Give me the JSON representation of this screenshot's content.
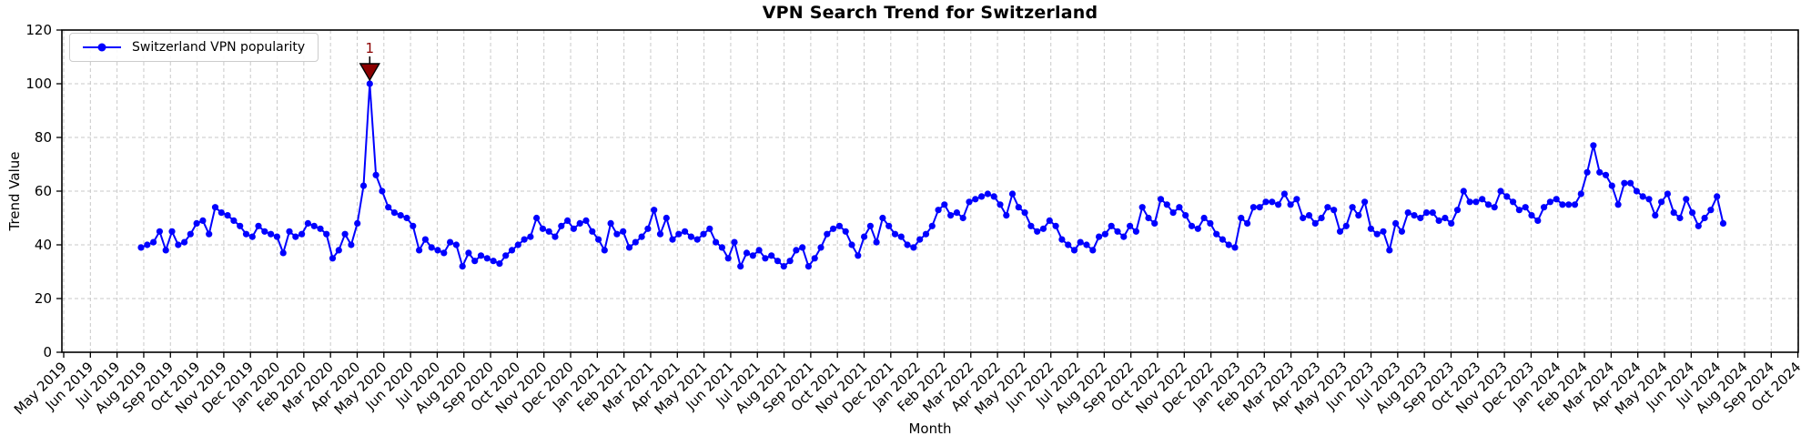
{
  "chart_data": {
    "type": "line",
    "title": "VPN Search Trend for Switzerland",
    "xlabel": "Month",
    "ylabel": "Trend Value",
    "ylim": [
      0,
      120
    ],
    "y_ticks": [
      0,
      20,
      40,
      60,
      80,
      100,
      120
    ],
    "grid": true,
    "legend_position": "upper left",
    "x_tick_labels": [
      "May 2019",
      "Jun 2019",
      "Jul 2019",
      "Aug 2019",
      "Sep 2019",
      "Oct 2019",
      "Nov 2019",
      "Dec 2019",
      "Jan 2020",
      "Feb 2020",
      "Mar 2020",
      "Apr 2020",
      "May 2020",
      "Jun 2020",
      "Jul 2020",
      "Aug 2020",
      "Sep 2020",
      "Oct 2020",
      "Nov 2020",
      "Dec 2020",
      "Jan 2021",
      "Feb 2021",
      "Mar 2021",
      "Apr 2021",
      "May 2021",
      "Jun 2021",
      "Jul 2021",
      "Aug 2021",
      "Sep 2021",
      "Oct 2021",
      "Nov 2021",
      "Dec 2021",
      "Jan 2022",
      "Feb 2022",
      "Mar 2022",
      "Apr 2022",
      "May 2022",
      "Jun 2022",
      "Jul 2022",
      "Aug 2022",
      "Sep 2022",
      "Oct 2022",
      "Nov 2022",
      "Dec 2022",
      "Jan 2023",
      "Feb 2023",
      "Mar 2023",
      "Apr 2023",
      "May 2023",
      "Jun 2023",
      "Jul 2023",
      "Aug 2023",
      "Sep 2023",
      "Oct 2023",
      "Nov 2023",
      "Dec 2023",
      "Jan 2024",
      "Feb 2024",
      "Mar 2024",
      "Apr 2024",
      "May 2024",
      "Jun 2024",
      "Jul 2024",
      "Aug 2024",
      "Sep 2024",
      "Oct 2024"
    ],
    "series": [
      {
        "name": "Switzerland VPN popularity",
        "color": "#0000ff",
        "marker": "circle",
        "x_start_month_index": 2.9,
        "x_end_month_index": 62.2,
        "values": [
          39,
          40,
          41,
          45,
          38,
          45,
          40,
          41,
          44,
          48,
          49,
          44,
          54,
          52,
          51,
          49,
          47,
          44,
          43,
          47,
          45,
          44,
          43,
          37,
          45,
          43,
          44,
          48,
          47,
          46,
          44,
          35,
          38,
          44,
          40,
          48,
          62,
          100,
          66,
          60,
          54,
          52,
          51,
          50,
          47,
          38,
          42,
          39,
          38,
          37,
          41,
          40,
          32,
          37,
          34,
          36,
          35,
          34,
          33,
          36,
          38,
          40,
          42,
          43,
          50,
          46,
          45,
          43,
          47,
          49,
          46,
          48,
          49,
          45,
          42,
          38,
          48,
          44,
          45,
          39,
          41,
          43,
          46,
          53,
          44,
          50,
          42,
          44,
          45,
          43,
          42,
          44,
          46,
          41,
          39,
          35,
          41,
          32,
          37,
          36,
          38,
          35,
          36,
          34,
          32,
          34,
          38,
          39,
          32,
          35,
          39,
          44,
          46,
          47,
          45,
          40,
          36,
          43,
          47,
          41,
          50,
          47,
          44,
          43,
          40,
          39,
          42,
          44,
          47,
          53,
          55,
          51,
          52,
          50,
          56,
          57,
          58,
          59,
          58,
          55,
          51,
          59,
          54,
          52,
          47,
          45,
          46,
          49,
          47,
          42,
          40,
          38,
          41,
          40,
          38,
          43,
          44,
          47,
          45,
          43,
          47,
          45,
          54,
          50,
          48,
          57,
          55,
          52,
          54,
          51,
          47,
          46,
          50,
          48,
          44,
          42,
          40,
          39,
          50,
          48,
          54,
          54,
          56,
          56,
          55,
          59,
          55,
          57,
          50,
          51,
          48,
          50,
          54,
          53,
          45,
          47,
          54,
          51,
          56,
          46,
          44,
          45,
          38,
          48,
          45,
          52,
          51,
          50,
          52,
          52,
          49,
          50,
          48,
          53,
          60,
          56,
          56,
          57,
          55,
          54,
          60,
          58,
          56,
          53,
          54,
          51,
          49,
          54,
          56,
          57,
          55,
          55,
          55,
          59,
          67,
          77,
          67,
          66,
          62,
          55,
          63,
          63,
          60,
          58,
          57,
          51,
          56,
          59,
          52,
          50,
          57,
          52,
          47,
          50,
          53,
          58,
          48
        ]
      }
    ],
    "annotations": [
      {
        "text": "1",
        "target": "max",
        "value": 100,
        "color": "#8b0000",
        "marker": "triangle-down"
      }
    ]
  }
}
